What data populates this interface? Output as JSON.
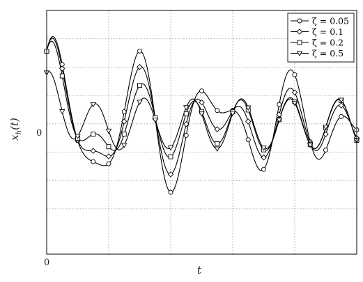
{
  "chart_data": {
    "type": "line",
    "title": "",
    "xlabel": "t",
    "ylabel": "x_h(t)",
    "ylabel_main": "x",
    "ylabel_sub": "h",
    "ylabel_arg": "(t)",
    "x_tick_labels": [
      "0"
    ],
    "y_tick_labels": [
      "0"
    ],
    "grid": true,
    "legend_position": "top-right",
    "xlim": [
      0,
      25
    ],
    "ylim": [
      -1.15,
      1.0
    ],
    "series": [
      {
        "name": "ζ = 0.05",
        "zeta": 0.05,
        "marker": "circle"
      },
      {
        "name": "ζ = 0.1",
        "zeta": 0.1,
        "marker": "diamond"
      },
      {
        "name": "ζ = 0.2",
        "zeta": 0.2,
        "marker": "square"
      },
      {
        "name": "ζ = 0.5",
        "zeta": 0.5,
        "marker": "triangle-down"
      }
    ]
  }
}
